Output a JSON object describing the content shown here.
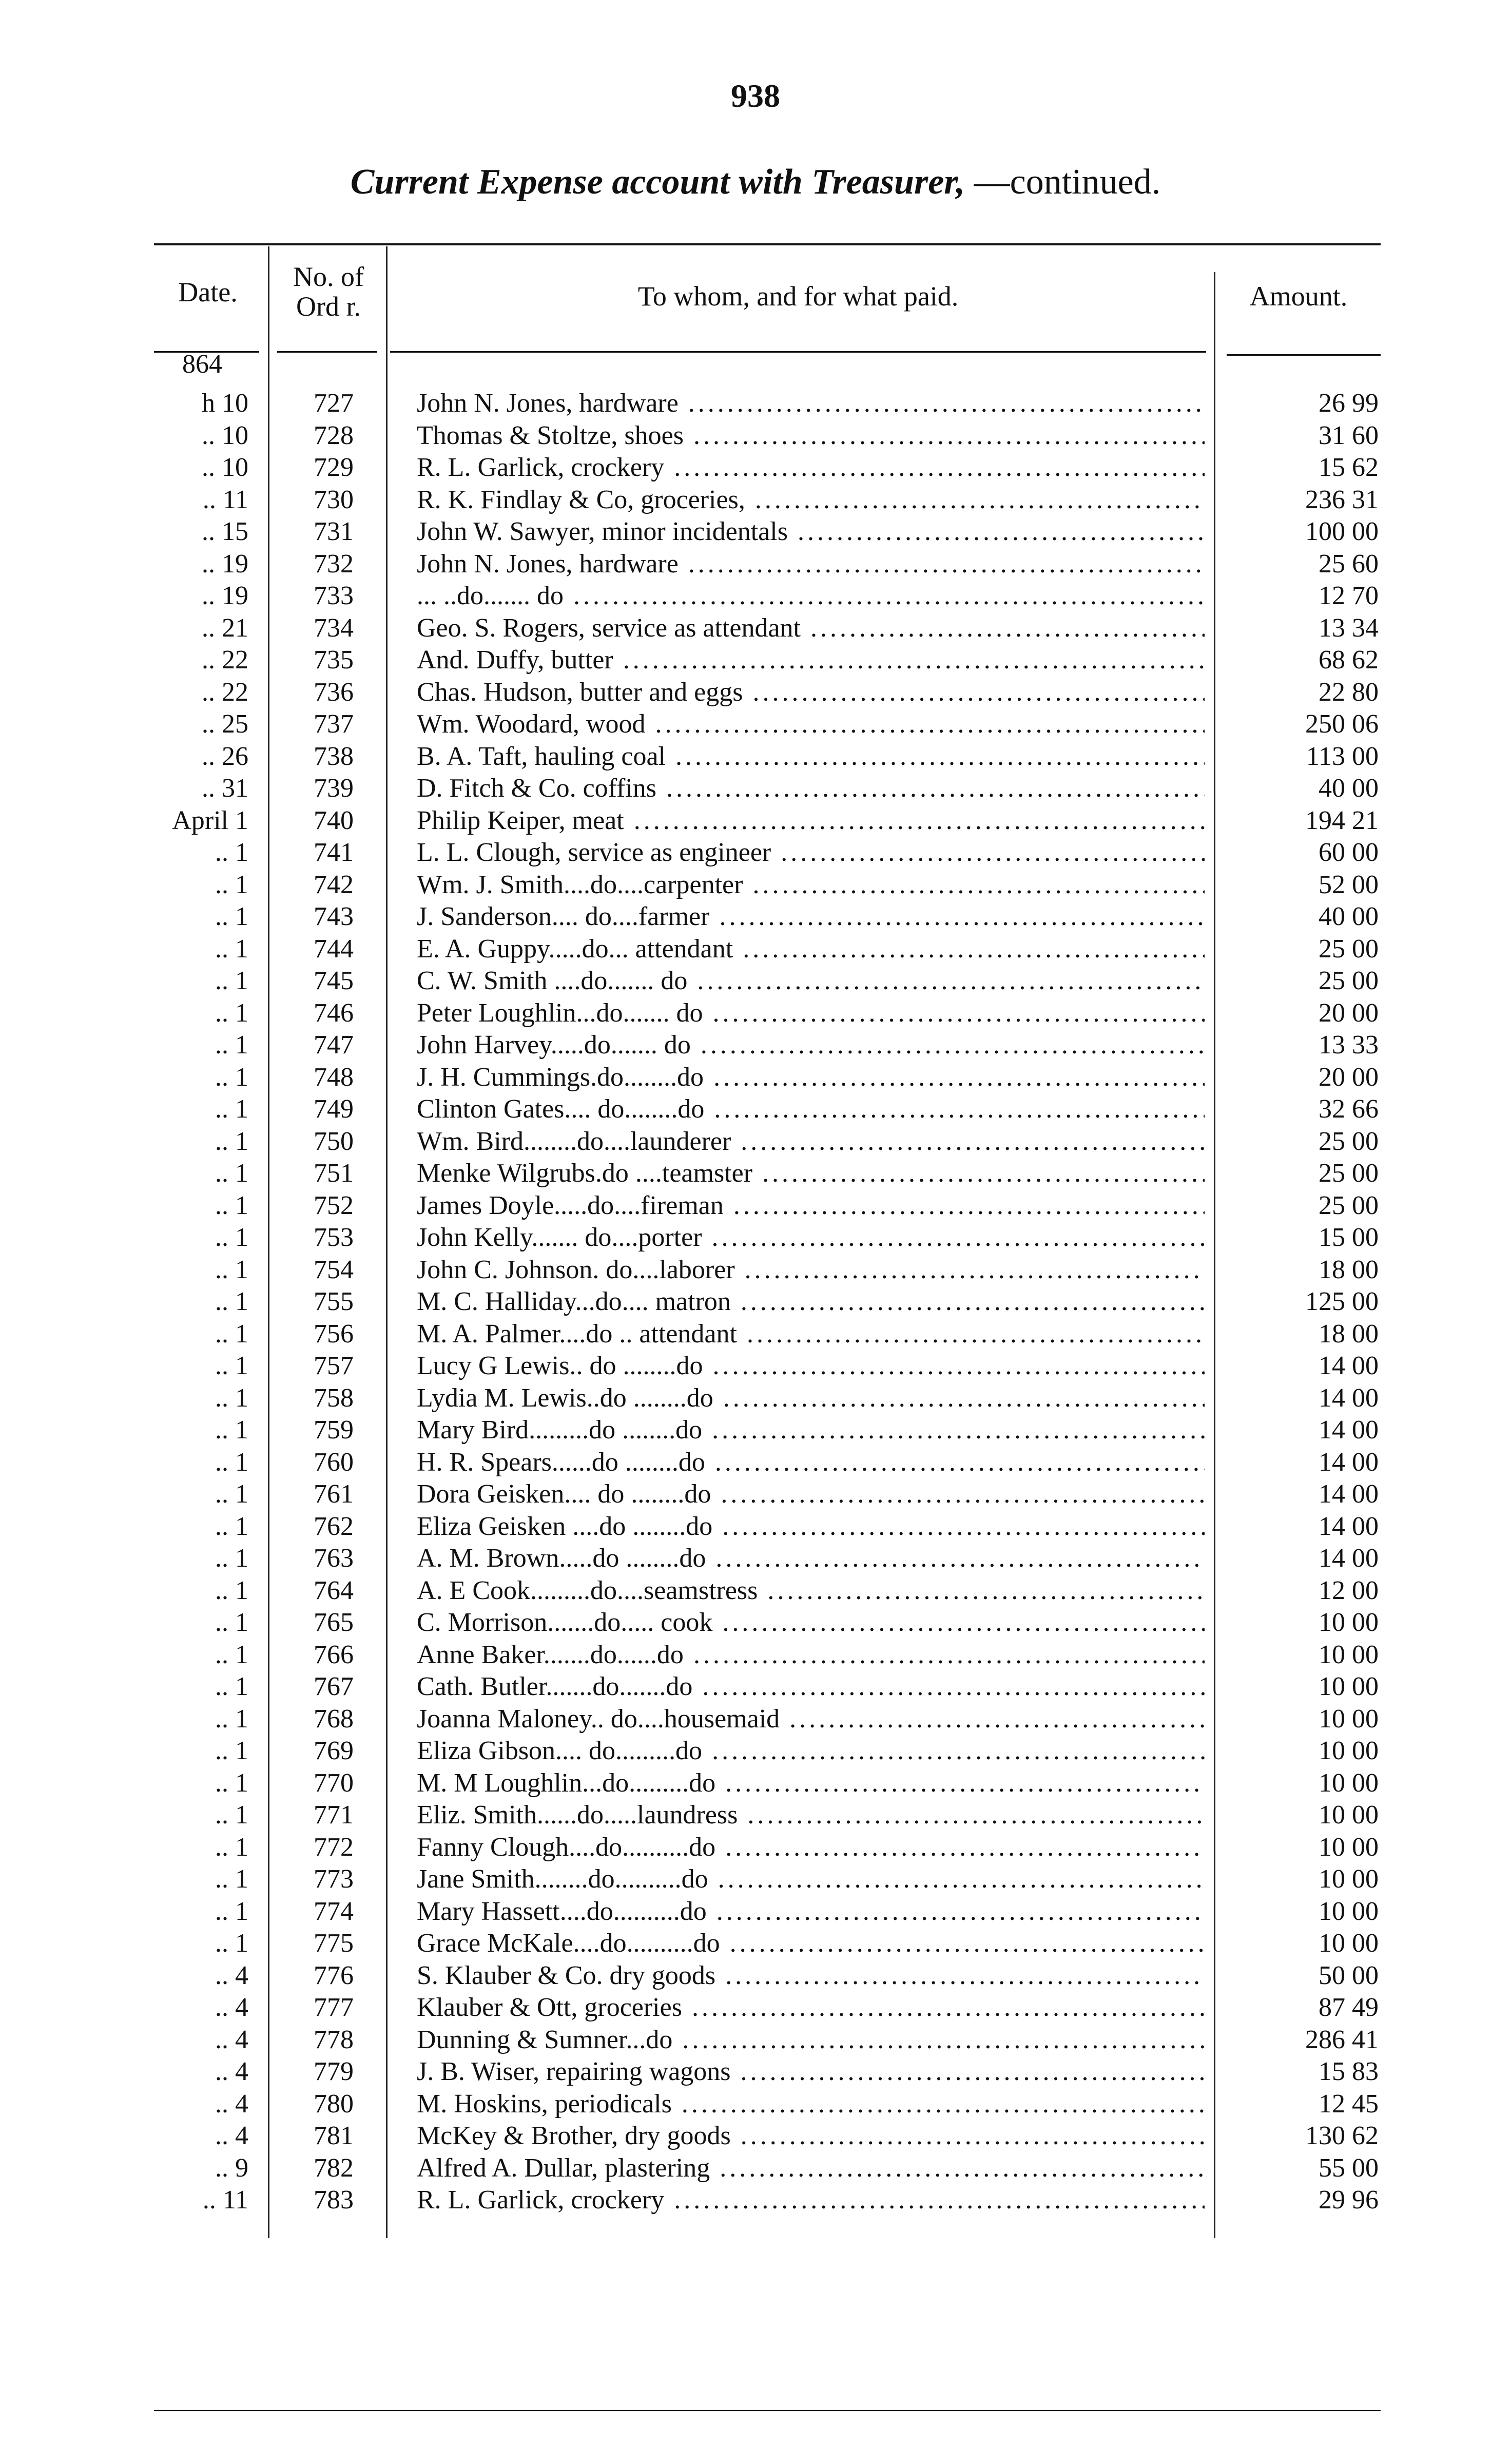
{
  "page_number": "938",
  "title": {
    "italic": "Current Expense account with Treasurer,",
    "rest": "—continued."
  },
  "columns": {
    "date": "Date.",
    "order": "No. of Ord r.",
    "payee": "To whom, and for what paid.",
    "amount": "Amount."
  },
  "year": "864",
  "rows": [
    {
      "date": "h 10",
      "order": "727",
      "payee": "John N. Jones, hardware",
      "amount": "26 99"
    },
    {
      "date": ".. 10",
      "order": "728",
      "payee": "Thomas & Stoltze, shoes",
      "amount": "31 60"
    },
    {
      "date": ".. 10",
      "order": "729",
      "payee": "R. L. Garlick, crockery",
      "amount": "15 62"
    },
    {
      "date": ".. 11",
      "order": "730",
      "payee": "R. K. Findlay & Co, groceries,",
      "amount": "236 31"
    },
    {
      "date": ".. 15",
      "order": "731",
      "payee": "John W. Sawyer, minor incidentals",
      "amount": "100 00"
    },
    {
      "date": ".. 19",
      "order": "732",
      "payee": "John N. Jones, hardware",
      "amount": "25 60"
    },
    {
      "date": ".. 19",
      "order": "733",
      "payee": "... ..do....... do",
      "amount": "12 70"
    },
    {
      "date": ".. 21",
      "order": "734",
      "payee": "Geo. S. Rogers, service as attendant",
      "amount": "13 34"
    },
    {
      "date": ".. 22",
      "order": "735",
      "payee": "And. Duffy, butter",
      "amount": "68 62"
    },
    {
      "date": ".. 22",
      "order": "736",
      "payee": "Chas. Hudson, butter and eggs",
      "amount": "22 80"
    },
    {
      "date": ".. 25",
      "order": "737",
      "payee": "Wm. Woodard, wood",
      "amount": "250 06"
    },
    {
      "date": ".. 26",
      "order": "738",
      "payee": "B. A. Taft, hauling coal",
      "amount": "113 00"
    },
    {
      "date": ".. 31",
      "order": "739",
      "payee": "D. Fitch & Co. coffins",
      "amount": "40 00"
    },
    {
      "date": "April 1",
      "order": "740",
      "payee": "Philip Keiper, meat",
      "amount": "194 21"
    },
    {
      "date": ".. 1",
      "order": "741",
      "payee": "L. L. Clough, service as engineer",
      "amount": "60 00"
    },
    {
      "date": ".. 1",
      "order": "742",
      "payee": "Wm. J. Smith....do....carpenter",
      "amount": "52 00"
    },
    {
      "date": ".. 1",
      "order": "743",
      "payee": "J. Sanderson.... do....farmer",
      "amount": "40 00"
    },
    {
      "date": ".. 1",
      "order": "744",
      "payee": "E. A. Guppy.....do... attendant",
      "amount": "25 00"
    },
    {
      "date": ".. 1",
      "order": "745",
      "payee": "C. W. Smith ....do....... do",
      "amount": "25 00"
    },
    {
      "date": ".. 1",
      "order": "746",
      "payee": "Peter Loughlin...do....... do",
      "amount": "20 00"
    },
    {
      "date": ".. 1",
      "order": "747",
      "payee": "John Harvey.....do....... do",
      "amount": "13 33"
    },
    {
      "date": ".. 1",
      "order": "748",
      "payee": "J. H. Cummings.do........do",
      "amount": "20 00"
    },
    {
      "date": ".. 1",
      "order": "749",
      "payee": "Clinton Gates.... do........do",
      "amount": "32 66"
    },
    {
      "date": ".. 1",
      "order": "750",
      "payee": "Wm. Bird........do....launderer",
      "amount": "25 00"
    },
    {
      "date": ".. 1",
      "order": "751",
      "payee": "Menke Wilgrubs.do ....teamster",
      "amount": "25 00"
    },
    {
      "date": ".. 1",
      "order": "752",
      "payee": "James Doyle.....do....fireman",
      "amount": "25 00"
    },
    {
      "date": ".. 1",
      "order": "753",
      "payee": "John Kelly....... do....porter",
      "amount": "15 00"
    },
    {
      "date": ".. 1",
      "order": "754",
      "payee": "John C. Johnson. do....laborer",
      "amount": "18 00"
    },
    {
      "date": ".. 1",
      "order": "755",
      "payee": "M. C. Halliday...do.... matron",
      "amount": "125 00"
    },
    {
      "date": ".. 1",
      "order": "756",
      "payee": "M. A. Palmer....do .. attendant",
      "amount": "18 00"
    },
    {
      "date": ".. 1",
      "order": "757",
      "payee": "Lucy G Lewis.. do ........do",
      "amount": "14 00"
    },
    {
      "date": ".. 1",
      "order": "758",
      "payee": "Lydia M. Lewis..do ........do",
      "amount": "14 00"
    },
    {
      "date": ".. 1",
      "order": "759",
      "payee": "Mary Bird.........do ........do",
      "amount": "14 00"
    },
    {
      "date": ".. 1",
      "order": "760",
      "payee": "H. R. Spears......do ........do",
      "amount": "14 00"
    },
    {
      "date": ".. 1",
      "order": "761",
      "payee": "Dora Geisken.... do ........do",
      "amount": "14 00"
    },
    {
      "date": ".. 1",
      "order": "762",
      "payee": "Eliza Geisken ....do ........do",
      "amount": "14 00"
    },
    {
      "date": ".. 1",
      "order": "763",
      "payee": "A. M. Brown.....do ........do",
      "amount": "14 00"
    },
    {
      "date": ".. 1",
      "order": "764",
      "payee": "A. E Cook.........do....seamstress",
      "amount": "12 00"
    },
    {
      "date": ".. 1",
      "order": "765",
      "payee": "C. Morrison.......do..... cook",
      "amount": "10 00"
    },
    {
      "date": ".. 1",
      "order": "766",
      "payee": "Anne Baker.......do......do",
      "amount": "10 00"
    },
    {
      "date": ".. 1",
      "order": "767",
      "payee": "Cath. Butler.......do.......do",
      "amount": "10 00"
    },
    {
      "date": ".. 1",
      "order": "768",
      "payee": "Joanna Maloney.. do....housemaid",
      "amount": "10 00"
    },
    {
      "date": ".. 1",
      "order": "769",
      "payee": "Eliza Gibson.... do.........do",
      "amount": "10 00"
    },
    {
      "date": ".. 1",
      "order": "770",
      "payee": "M. M Loughlin...do.........do",
      "amount": "10 00"
    },
    {
      "date": ".. 1",
      "order": "771",
      "payee": "Eliz. Smith......do.....laundress",
      "amount": "10 00"
    },
    {
      "date": ".. 1",
      "order": "772",
      "payee": "Fanny Clough....do..........do",
      "amount": "10 00"
    },
    {
      "date": ".. 1",
      "order": "773",
      "payee": "Jane Smith........do..........do",
      "amount": "10 00"
    },
    {
      "date": ".. 1",
      "order": "774",
      "payee": "Mary Hassett....do..........do",
      "amount": "10 00"
    },
    {
      "date": ".. 1",
      "order": "775",
      "payee": "Grace McKale....do..........do",
      "amount": "10 00"
    },
    {
      "date": ".. 4",
      "order": "776",
      "payee": "S. Klauber & Co. dry goods",
      "amount": "50 00"
    },
    {
      "date": ".. 4",
      "order": "777",
      "payee": "Klauber & Ott, groceries",
      "amount": "87 49"
    },
    {
      "date": ".. 4",
      "order": "778",
      "payee": "Dunning & Sumner...do",
      "amount": "286 41"
    },
    {
      "date": ".. 4",
      "order": "779",
      "payee": "J. B. Wiser, repairing wagons",
      "amount": "15 83"
    },
    {
      "date": ".. 4",
      "order": "780",
      "payee": "M. Hoskins, periodicals",
      "amount": "12 45"
    },
    {
      "date": ".. 4",
      "order": "781",
      "payee": "McKey & Brother, dry goods",
      "amount": "130 62"
    },
    {
      "date": ".. 9",
      "order": "782",
      "payee": "Alfred A. Dullar, plastering",
      "amount": "55 00"
    },
    {
      "date": ".. 11",
      "order": "783",
      "payee": "R. L. Garlick, crockery",
      "amount": "29 96"
    }
  ]
}
